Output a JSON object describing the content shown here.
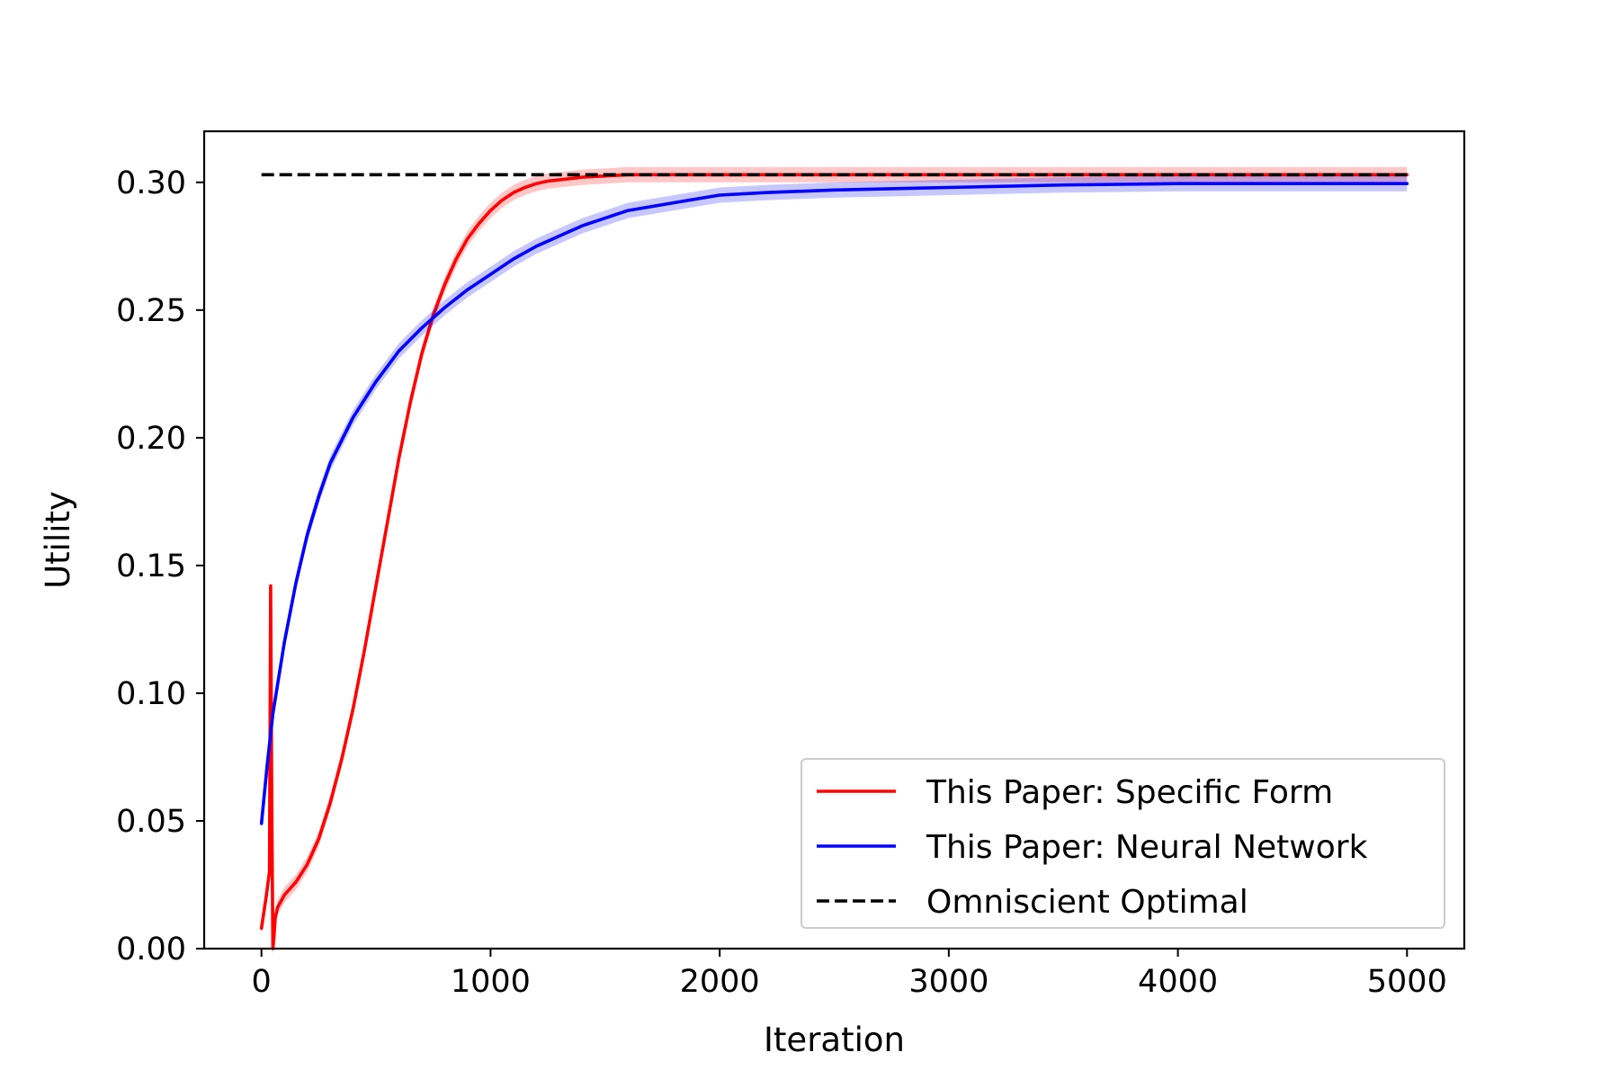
{
  "chart_data": {
    "type": "line",
    "title": "",
    "xlabel": "Iteration",
    "ylabel": "Utility",
    "xlim": [
      -250,
      5250
    ],
    "ylim": [
      0.0,
      0.32
    ],
    "xticks": [
      0,
      1000,
      2000,
      3000,
      4000,
      5000
    ],
    "xtick_labels": [
      "0",
      "1000",
      "2000",
      "3000",
      "4000",
      "5000"
    ],
    "yticks": [
      0.0,
      0.05,
      0.1,
      0.15,
      0.2,
      0.25,
      0.3
    ],
    "ytick_labels": [
      "0.00",
      "0.05",
      "0.10",
      "0.15",
      "0.20",
      "0.25",
      "0.30"
    ],
    "grid": false,
    "legend_position": "lower-right",
    "series": [
      {
        "name": "This Paper: Specific Form",
        "color": "#ff0000",
        "style": "solid",
        "band": 0.003,
        "x": [
          0,
          20,
          35,
          40,
          45,
          50,
          55,
          60,
          70,
          100,
          150,
          200,
          250,
          300,
          350,
          400,
          450,
          500,
          550,
          600,
          650,
          700,
          750,
          800,
          850,
          900,
          950,
          1000,
          1050,
          1100,
          1150,
          1200,
          1250,
          1300,
          1350,
          1400,
          1500,
          1600,
          1800,
          2000,
          3000,
          4000,
          5000
        ],
        "y": [
          0.008,
          0.02,
          0.03,
          0.142,
          0.06,
          0.0,
          0.005,
          0.012,
          0.016,
          0.021,
          0.026,
          0.033,
          0.043,
          0.057,
          0.074,
          0.094,
          0.117,
          0.142,
          0.167,
          0.192,
          0.214,
          0.233,
          0.248,
          0.26,
          0.27,
          0.278,
          0.284,
          0.289,
          0.293,
          0.296,
          0.298,
          0.2995,
          0.3005,
          0.301,
          0.3015,
          0.302,
          0.3025,
          0.303,
          0.303,
          0.303,
          0.303,
          0.303,
          0.303
        ]
      },
      {
        "name": "This Paper: Neural Network",
        "color": "#0000ff",
        "style": "solid",
        "band": 0.003,
        "x": [
          0,
          25,
          50,
          100,
          150,
          200,
          250,
          300,
          400,
          500,
          600,
          700,
          800,
          900,
          1000,
          1100,
          1200,
          1300,
          1400,
          1500,
          1600,
          1800,
          2000,
          2200,
          2500,
          3000,
          3500,
          4000,
          4500,
          5000
        ],
        "y": [
          0.049,
          0.072,
          0.092,
          0.12,
          0.143,
          0.162,
          0.177,
          0.19,
          0.208,
          0.222,
          0.234,
          0.243,
          0.251,
          0.258,
          0.264,
          0.27,
          0.275,
          0.279,
          0.283,
          0.286,
          0.289,
          0.292,
          0.295,
          0.296,
          0.297,
          0.298,
          0.299,
          0.2995,
          0.2995,
          0.2995
        ]
      },
      {
        "name": "Omniscient Optimal",
        "color": "#000000",
        "style": "dashed",
        "x": [
          0,
          5000
        ],
        "y": [
          0.303,
          0.303
        ]
      }
    ]
  }
}
